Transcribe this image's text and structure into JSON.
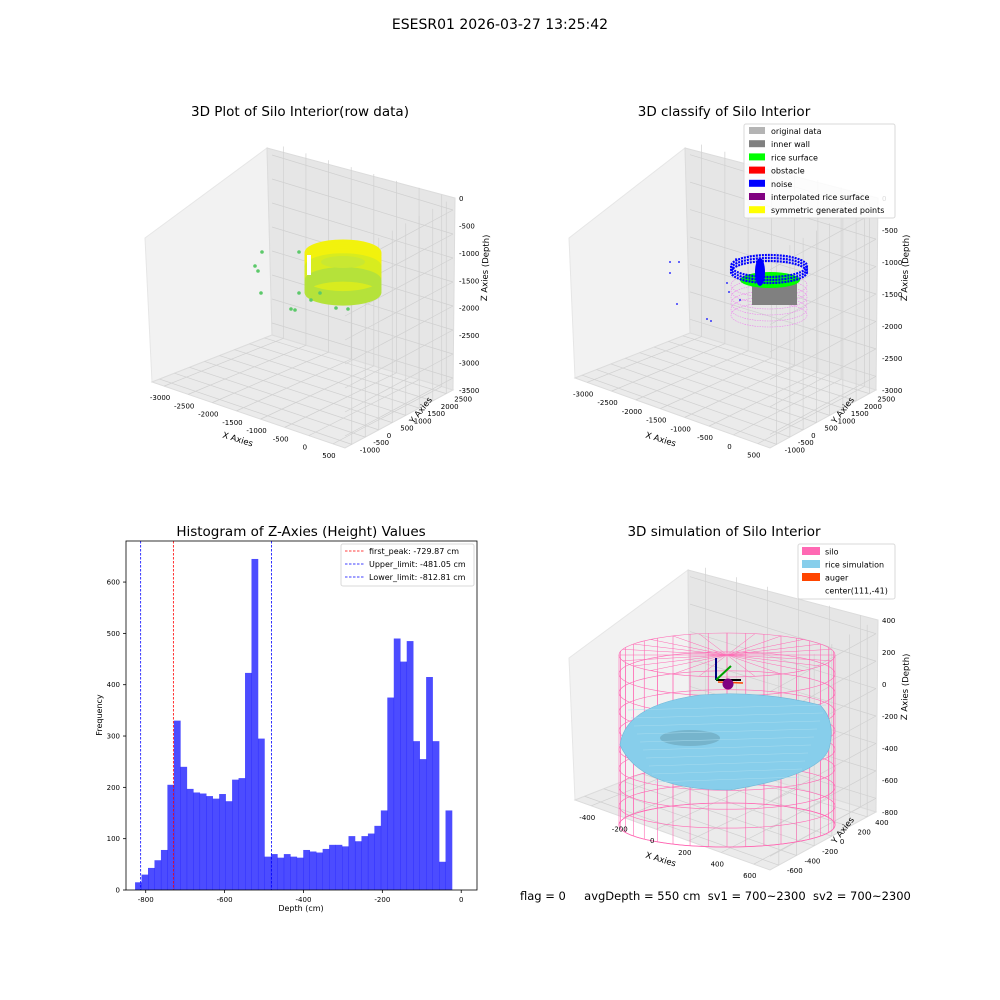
{
  "window": {
    "suptitle": "ESESR01 2026-03-27 13:25:42"
  },
  "status": {
    "flag": "flag = 0",
    "avg_depth": "avgDepth = 550 cm",
    "sv1": "sv1 = 700~2300",
    "sv2": "sv2 = 700~2300"
  },
  "panels": {
    "raw": {
      "title": "3D Plot of Silo Interior(row data)",
      "xlabel": "X Axies",
      "ylabel": "Y Axies",
      "zlabel": "Z Axies (Depth)",
      "x_ticks": [
        "-3000",
        "-2500",
        "-2000",
        "-1500",
        "-1000",
        "-500",
        "0",
        "500"
      ],
      "y_ticks": [
        "-1000",
        "-500",
        "0",
        "500",
        "1000",
        "1500",
        "2000",
        "2500"
      ],
      "z_ticks": [
        "0",
        "-500",
        "-1000",
        "-1500",
        "-2000",
        "-2500",
        "-3000",
        "-3500"
      ],
      "colors": {
        "surface_low": "#7bd44e",
        "surface_high": "#f2f20d",
        "scatter": "#5cc96a"
      }
    },
    "classify": {
      "title": "3D classify of Silo Interior",
      "xlabel": "X Axies",
      "ylabel": "Y Axies",
      "zlabel": "Z Axies (Depth)",
      "x_ticks": [
        "-3000",
        "-2500",
        "-2000",
        "-1500",
        "-1000",
        "-500",
        "0",
        "500"
      ],
      "y_ticks": [
        "-1000",
        "-500",
        "0",
        "500",
        "1000",
        "1500",
        "2000",
        "2500"
      ],
      "z_ticks": [
        "0",
        "-500",
        "-1000",
        "-1500",
        "-2000",
        "-2500",
        "-3000"
      ],
      "legend": [
        {
          "label": "original data",
          "color": "#b4b4b4"
        },
        {
          "label": "inner wall",
          "color": "#808080"
        },
        {
          "label": "rice surface",
          "color": "#00ff00"
        },
        {
          "label": "obstacle",
          "color": "#ff0000"
        },
        {
          "label": "noise",
          "color": "#0000ff"
        },
        {
          "label": "interpolated rice surface",
          "color": "#800080"
        },
        {
          "label": "symmetric generated points",
          "color": "#ffff00"
        }
      ]
    },
    "simulation": {
      "title": "3D simulation of Silo Interior",
      "xlabel": "X Axies",
      "ylabel": "Y Axies",
      "zlabel": "Z Axies (Depth)",
      "x_ticks": [
        "-400",
        "-200",
        "0",
        "200",
        "400",
        "600"
      ],
      "y_ticks": [
        "-600",
        "-400",
        "-200",
        "0",
        "200",
        "400"
      ],
      "z_ticks": [
        "400",
        "200",
        "0",
        "-200",
        "-400",
        "-600",
        "-800"
      ],
      "legend": [
        {
          "label": "silo",
          "color": "#ff69b4"
        },
        {
          "label": "rice simulation",
          "color": "#87ceeb"
        },
        {
          "label": "auger",
          "color": "#ff4500"
        },
        {
          "label": "center(111,-41)",
          "color": ""
        }
      ]
    }
  },
  "chart_data": [
    {
      "type": "bar",
      "title": "Histogram of Z-Axies (Height) Values",
      "xlabel": "Depth (cm)",
      "ylabel": "Frequency",
      "bar_color": "#0000ff",
      "xlim": [
        -850,
        40
      ],
      "ylim": [
        0,
        680
      ],
      "x_ticks": [
        -800,
        -600,
        -400,
        -200,
        0
      ],
      "y_ticks": [
        0,
        100,
        200,
        300,
        400,
        500,
        600
      ],
      "bins": {
        "start": -827,
        "width": 16.4,
        "counts": [
          15,
          30,
          43,
          58,
          78,
          205,
          330,
          240,
          197,
          190,
          188,
          183,
          178,
          187,
          173,
          215,
          218,
          423,
          645,
          295,
          65,
          70,
          63,
          70,
          65,
          63,
          78,
          75,
          73,
          80,
          88,
          88,
          85,
          105,
          95,
          105,
          110,
          125,
          155,
          375,
          490,
          445,
          485,
          290,
          255,
          415,
          290,
          55,
          155
        ]
      },
      "reference_lines": [
        {
          "label": "first_peak: -729.87 cm",
          "value": -729.87,
          "color": "#ff0000"
        },
        {
          "label": "Upper_limit: -481.05 cm",
          "value": -481.05,
          "color": "#0000ff"
        },
        {
          "label": "Lower_limit: -812.81 cm",
          "value": -812.81,
          "color": "#0000ff"
        }
      ]
    }
  ]
}
